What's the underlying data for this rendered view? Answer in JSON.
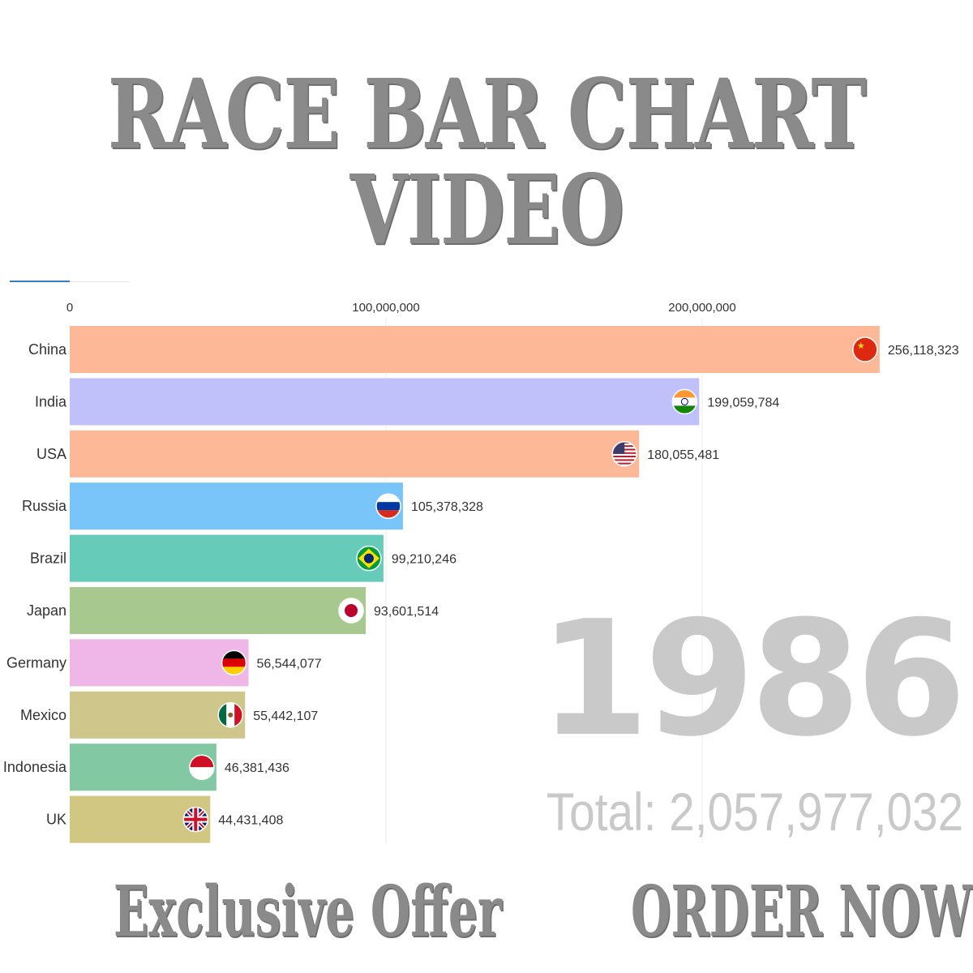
{
  "headline": "RACE BAR CHART VIDEO",
  "year": "1986",
  "total_text": "Total: 2,057,977,032",
  "cta_left": "Exclusive Offer",
  "cta_right": "ORDER NOW",
  "progress": 0.5,
  "chart_data": {
    "type": "bar",
    "orientation": "horizontal",
    "categories": [
      "China",
      "India",
      "USA",
      "Russia",
      "Brazil",
      "Japan",
      "Germany",
      "Mexico",
      "Indonesia",
      "UK"
    ],
    "values": [
      256118323,
      199059784,
      180055481,
      105378328,
      99210246,
      93601514,
      56544077,
      55442107,
      46381436,
      44431408
    ],
    "value_labels": [
      "256,118,323",
      "199,059,784",
      "180,055,481",
      "105,378,328",
      "99,210,246",
      "93,601,514",
      "56,544,077",
      "55,442,107",
      "46,381,436",
      "44,431,408"
    ],
    "colors": [
      "#fdb897",
      "#c0c0fb",
      "#fdb897",
      "#79c5f9",
      "#66cbb9",
      "#a7c98f",
      "#efb6e8",
      "#cfc68b",
      "#82c8a2",
      "#d2c683"
    ],
    "flags": [
      "china-flag-icon",
      "india-flag-icon",
      "usa-flag-icon",
      "russia-flag-icon",
      "brazil-flag-icon",
      "japan-flag-icon",
      "germany-flag-icon",
      "mexico-flag-icon",
      "indonesia-flag-icon",
      "uk-flag-icon"
    ],
    "xticks": [
      0,
      100000000,
      200000000
    ],
    "xtick_labels": [
      "0",
      "100,000,000",
      "200,000,000"
    ],
    "title": "",
    "xlabel": "",
    "ylabel": "",
    "grid": true
  }
}
